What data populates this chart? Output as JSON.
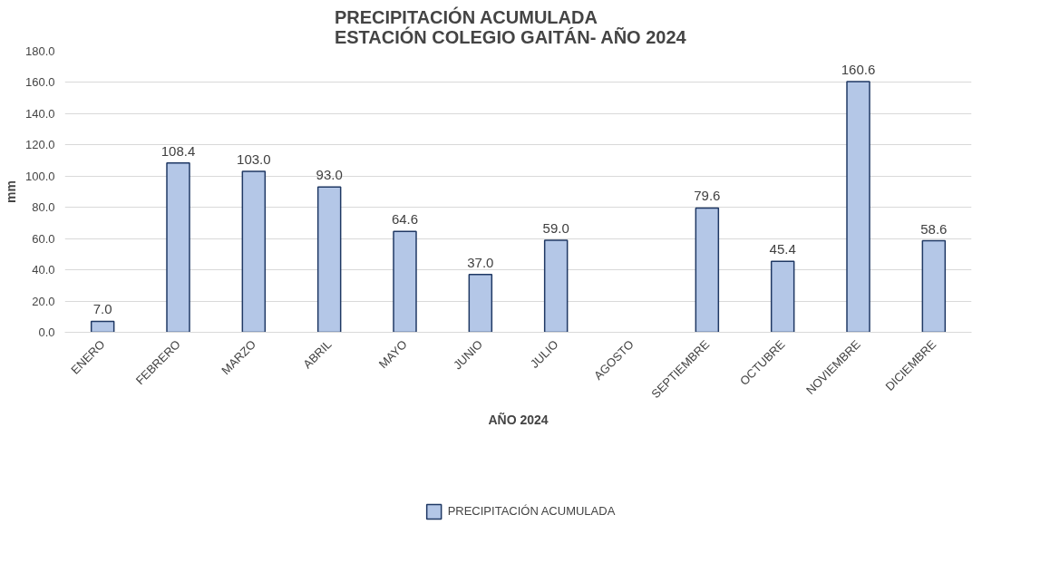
{
  "chart_data": {
    "type": "bar",
    "title": "PRECIPITACIÓN ACUMULADA\nESTACIÓN COLEGIO GAITÁN-    AÑO 2024",
    "xlabel": "AÑO 2024",
    "ylabel": "mm",
    "categories": [
      "ENERO",
      "FEBRERO",
      "MARZO",
      "ABRIL",
      "MAYO",
      "JUNIO",
      "JULIO",
      "AGOSTO",
      "SEPTIEMBRE",
      "OCTUBRE",
      "NOVIEMBRE",
      "DICIEMBRE"
    ],
    "series": [
      {
        "name": "PRECIPITACIÓN ACUMULADA",
        "color": "#b4c7e7",
        "values": [
          7.0,
          108.4,
          103.0,
          93.0,
          64.6,
          37.0,
          59.0,
          null,
          79.6,
          45.4,
          160.6,
          58.6
        ],
        "value_labels": [
          "7.0",
          "108.4",
          "103.0",
          "93.0",
          "64.6",
          "37.0",
          "59.0",
          null,
          "79.6",
          "45.4",
          "160.6",
          "58.6"
        ]
      }
    ],
    "ylim": [
      0,
      180
    ],
    "yticks": [
      {
        "value": 0,
        "label": "0.0"
      },
      {
        "value": 20,
        "label": "20.0"
      },
      {
        "value": 40,
        "label": "40.0"
      },
      {
        "value": 60,
        "label": "60.0"
      },
      {
        "value": 80,
        "label": "80.0"
      },
      {
        "value": 100,
        "label": "100.0"
      },
      {
        "value": 120,
        "label": "120.0"
      },
      {
        "value": 140,
        "label": "140.0"
      },
      {
        "value": 160,
        "label": "160.0"
      },
      {
        "value": 180,
        "label": "180.0"
      }
    ],
    "grid": "y",
    "legend": "bottom"
  }
}
